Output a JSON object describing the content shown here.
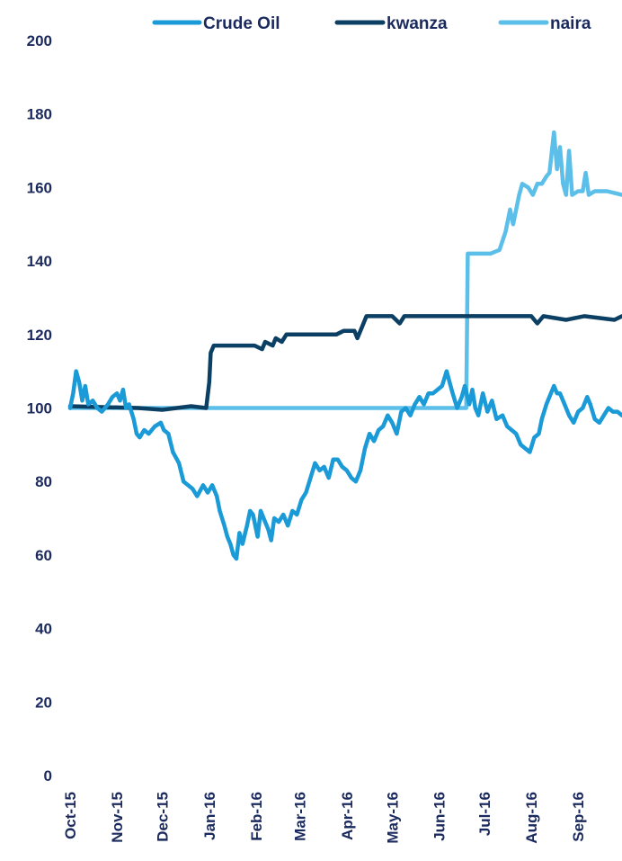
{
  "chart_data": {
    "type": "line",
    "title": "",
    "xlabel": "",
    "ylabel": "",
    "ylim": [
      0,
      200
    ],
    "yticks": [
      0,
      20,
      40,
      60,
      80,
      100,
      120,
      140,
      160,
      180,
      200
    ],
    "ytick_labels": [
      "0",
      "20",
      "40",
      "60",
      "80",
      "100",
      "120",
      "140",
      "160",
      "180",
      "200"
    ],
    "xlim": [
      "2015-10-01",
      "2016-09-30"
    ],
    "xticks": [
      "2015-10-01",
      "2015-11-01",
      "2015-12-01",
      "2016-01-01",
      "2016-02-01",
      "2016-03-01",
      "2016-04-01",
      "2016-05-01",
      "2016-06-01",
      "2016-07-01",
      "2016-08-01",
      "2016-09-01"
    ],
    "xtick_labels": [
      "Oct-15",
      "Nov-15",
      "Dec-15",
      "Jan-16",
      "Feb-16",
      "Mar-16",
      "Apr-16",
      "May-16",
      "Jun-16",
      "Jul-16",
      "Aug-16",
      "Sep-16"
    ],
    "grid": false,
    "legend_position": "top",
    "series": [
      {
        "name": "Crude Oil",
        "color": "#1a9ad6",
        "points": [
          [
            "2015-10-01",
            100
          ],
          [
            "2015-10-03",
            104
          ],
          [
            "2015-10-05",
            110
          ],
          [
            "2015-10-07",
            107
          ],
          [
            "2015-10-09",
            102
          ],
          [
            "2015-10-11",
            106
          ],
          [
            "2015-10-13",
            101
          ],
          [
            "2015-10-16",
            102
          ],
          [
            "2015-10-19",
            100
          ],
          [
            "2015-10-22",
            99
          ],
          [
            "2015-10-26",
            101
          ],
          [
            "2015-10-29",
            103
          ],
          [
            "2015-11-01",
            104
          ],
          [
            "2015-11-03",
            102
          ],
          [
            "2015-11-05",
            105
          ],
          [
            "2015-11-07",
            100
          ],
          [
            "2015-11-09",
            101
          ],
          [
            "2015-11-12",
            97
          ],
          [
            "2015-11-14",
            93
          ],
          [
            "2015-11-16",
            92
          ],
          [
            "2015-11-19",
            94
          ],
          [
            "2015-11-22",
            93
          ],
          [
            "2015-11-26",
            95
          ],
          [
            "2015-11-30",
            96
          ],
          [
            "2015-12-02",
            94
          ],
          [
            "2015-12-05",
            93
          ],
          [
            "2015-12-08",
            88
          ],
          [
            "2015-12-12",
            85
          ],
          [
            "2015-12-15",
            80
          ],
          [
            "2015-12-18",
            79
          ],
          [
            "2015-12-21",
            78
          ],
          [
            "2015-12-24",
            76
          ],
          [
            "2015-12-28",
            79
          ],
          [
            "2015-12-31",
            77
          ],
          [
            "2016-01-03",
            79
          ],
          [
            "2016-01-06",
            76
          ],
          [
            "2016-01-08",
            72
          ],
          [
            "2016-01-11",
            68
          ],
          [
            "2016-01-13",
            65
          ],
          [
            "2016-01-15",
            63
          ],
          [
            "2016-01-17",
            60
          ],
          [
            "2016-01-19",
            59
          ],
          [
            "2016-01-21",
            66
          ],
          [
            "2016-01-23",
            63
          ],
          [
            "2016-01-26",
            68
          ],
          [
            "2016-01-28",
            72
          ],
          [
            "2016-01-30",
            71
          ],
          [
            "2016-02-02",
            65
          ],
          [
            "2016-02-04",
            72
          ],
          [
            "2016-02-06",
            70
          ],
          [
            "2016-02-09",
            67
          ],
          [
            "2016-02-11",
            64
          ],
          [
            "2016-02-13",
            70
          ],
          [
            "2016-02-16",
            69
          ],
          [
            "2016-02-19",
            71
          ],
          [
            "2016-02-22",
            68
          ],
          [
            "2016-02-25",
            72
          ],
          [
            "2016-02-28",
            71
          ],
          [
            "2016-03-02",
            75
          ],
          [
            "2016-03-05",
            77
          ],
          [
            "2016-03-08",
            81
          ],
          [
            "2016-03-11",
            85
          ],
          [
            "2016-03-14",
            83
          ],
          [
            "2016-03-17",
            84
          ],
          [
            "2016-03-20",
            81
          ],
          [
            "2016-03-23",
            86
          ],
          [
            "2016-03-26",
            86
          ],
          [
            "2016-03-29",
            84
          ],
          [
            "2016-04-01",
            83
          ],
          [
            "2016-04-04",
            81
          ],
          [
            "2016-04-07",
            80
          ],
          [
            "2016-04-10",
            83
          ],
          [
            "2016-04-13",
            89
          ],
          [
            "2016-04-16",
            93
          ],
          [
            "2016-04-19",
            91
          ],
          [
            "2016-04-22",
            94
          ],
          [
            "2016-04-25",
            95
          ],
          [
            "2016-04-28",
            98
          ],
          [
            "2016-05-01",
            96
          ],
          [
            "2016-05-04",
            93
          ],
          [
            "2016-05-07",
            99
          ],
          [
            "2016-05-10",
            100
          ],
          [
            "2016-05-13",
            98
          ],
          [
            "2016-05-16",
            101
          ],
          [
            "2016-05-19",
            103
          ],
          [
            "2016-05-22",
            101
          ],
          [
            "2016-05-25",
            104
          ],
          [
            "2016-05-28",
            104
          ],
          [
            "2016-05-31",
            105
          ],
          [
            "2016-06-03",
            106
          ],
          [
            "2016-06-06",
            110
          ],
          [
            "2016-06-08",
            107
          ],
          [
            "2016-06-10",
            104
          ],
          [
            "2016-06-13",
            100
          ],
          [
            "2016-06-16",
            103
          ],
          [
            "2016-06-18",
            106
          ],
          [
            "2016-06-21",
            101
          ],
          [
            "2016-06-23",
            105
          ],
          [
            "2016-06-25",
            100
          ],
          [
            "2016-06-27",
            98
          ],
          [
            "2016-06-30",
            104
          ],
          [
            "2016-07-03",
            99
          ],
          [
            "2016-07-06",
            102
          ],
          [
            "2016-07-09",
            97
          ],
          [
            "2016-07-13",
            98
          ],
          [
            "2016-07-16",
            95
          ],
          [
            "2016-07-19",
            94
          ],
          [
            "2016-07-22",
            93
          ],
          [
            "2016-07-25",
            90
          ],
          [
            "2016-07-28",
            89
          ],
          [
            "2016-07-31",
            88
          ],
          [
            "2016-08-03",
            92
          ],
          [
            "2016-08-06",
            93
          ],
          [
            "2016-08-08",
            97
          ],
          [
            "2016-08-11",
            101
          ],
          [
            "2016-08-14",
            104
          ],
          [
            "2016-08-16",
            106
          ],
          [
            "2016-08-18",
            104
          ],
          [
            "2016-08-20",
            104
          ],
          [
            "2016-08-23",
            101
          ],
          [
            "2016-08-26",
            98
          ],
          [
            "2016-08-29",
            96
          ],
          [
            "2016-09-01",
            99
          ],
          [
            "2016-09-04",
            100
          ],
          [
            "2016-09-07",
            103
          ],
          [
            "2016-09-09",
            101
          ],
          [
            "2016-09-12",
            97
          ],
          [
            "2016-09-15",
            96
          ],
          [
            "2016-09-18",
            98
          ],
          [
            "2016-09-21",
            100
          ],
          [
            "2016-09-24",
            99
          ],
          [
            "2016-09-27",
            99
          ],
          [
            "2016-09-30",
            98
          ]
        ]
      },
      {
        "name": "kwanza",
        "color": "#0b3f63",
        "points": [
          [
            "2015-10-01",
            100.5
          ],
          [
            "2015-11-15",
            100
          ],
          [
            "2015-12-01",
            99.5
          ],
          [
            "2015-12-20",
            100.5
          ],
          [
            "2015-12-30",
            100
          ],
          [
            "2016-01-01",
            107
          ],
          [
            "2016-01-02",
            115
          ],
          [
            "2016-01-04",
            117
          ],
          [
            "2016-01-31",
            117
          ],
          [
            "2016-02-05",
            116
          ],
          [
            "2016-02-07",
            118
          ],
          [
            "2016-02-12",
            117
          ],
          [
            "2016-02-14",
            119
          ],
          [
            "2016-02-18",
            118
          ],
          [
            "2016-02-21",
            120
          ],
          [
            "2016-03-01",
            120
          ],
          [
            "2016-03-09",
            120
          ],
          [
            "2016-03-16",
            120
          ],
          [
            "2016-03-25",
            120
          ],
          [
            "2016-03-30",
            121
          ],
          [
            "2016-04-06",
            121
          ],
          [
            "2016-04-08",
            119
          ],
          [
            "2016-04-11",
            122
          ],
          [
            "2016-04-14",
            125
          ],
          [
            "2016-05-01",
            125
          ],
          [
            "2016-05-06",
            123
          ],
          [
            "2016-05-09",
            125
          ],
          [
            "2016-06-01",
            125
          ],
          [
            "2016-07-01",
            125
          ],
          [
            "2016-08-01",
            125
          ],
          [
            "2016-08-05",
            123
          ],
          [
            "2016-08-09",
            125
          ],
          [
            "2016-08-24",
            124
          ],
          [
            "2016-09-05",
            125
          ],
          [
            "2016-09-25",
            124
          ],
          [
            "2016-09-30",
            125
          ]
        ]
      },
      {
        "name": "naira",
        "color": "#5bbfe9",
        "points": [
          [
            "2015-10-01",
            100
          ],
          [
            "2016-06-19",
            100
          ],
          [
            "2016-06-20",
            142
          ],
          [
            "2016-06-30",
            142
          ],
          [
            "2016-07-05",
            142
          ],
          [
            "2016-07-11",
            143
          ],
          [
            "2016-07-15",
            148
          ],
          [
            "2016-07-18",
            154
          ],
          [
            "2016-07-20",
            150
          ],
          [
            "2016-07-24",
            158
          ],
          [
            "2016-07-26",
            161
          ],
          [
            "2016-07-30",
            160
          ],
          [
            "2016-08-02",
            158
          ],
          [
            "2016-08-05",
            161
          ],
          [
            "2016-08-08",
            161
          ],
          [
            "2016-08-11",
            163
          ],
          [
            "2016-08-13",
            164
          ],
          [
            "2016-08-16",
            175
          ],
          [
            "2016-08-18",
            165
          ],
          [
            "2016-08-20",
            171
          ],
          [
            "2016-08-22",
            161
          ],
          [
            "2016-08-24",
            158
          ],
          [
            "2016-08-26",
            170
          ],
          [
            "2016-08-28",
            158
          ],
          [
            "2016-09-01",
            159
          ],
          [
            "2016-09-04",
            159
          ],
          [
            "2016-09-06",
            164
          ],
          [
            "2016-09-08",
            158
          ],
          [
            "2016-09-12",
            159
          ],
          [
            "2016-09-20",
            159
          ],
          [
            "2016-09-30",
            158
          ]
        ]
      }
    ]
  }
}
